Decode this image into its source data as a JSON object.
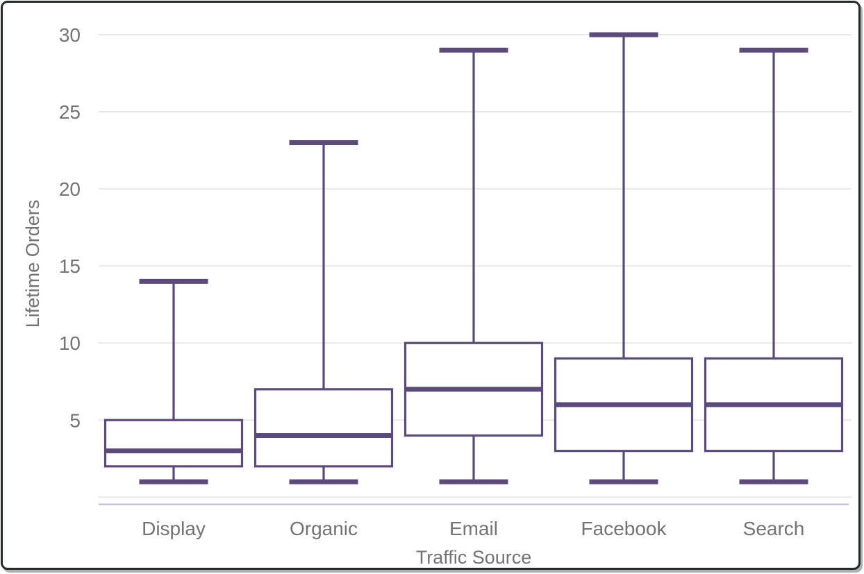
{
  "chart_data": {
    "type": "boxplot",
    "title": "",
    "xlabel": "Traffic Source",
    "ylabel": "Lifetime Orders",
    "categories": [
      "Display",
      "Organic",
      "Email",
      "Facebook",
      "Search"
    ],
    "series": [
      {
        "name": "Display",
        "min": 1,
        "q1": 2,
        "median": 3,
        "q3": 5,
        "max": 14
      },
      {
        "name": "Organic",
        "min": 1,
        "q1": 2,
        "median": 4,
        "q3": 7,
        "max": 23
      },
      {
        "name": "Email",
        "min": 1,
        "q1": 4,
        "median": 7,
        "q3": 10,
        "max": 29
      },
      {
        "name": "Facebook",
        "min": 1,
        "q1": 3,
        "median": 6,
        "q3": 9,
        "max": 30
      },
      {
        "name": "Search",
        "min": 1,
        "q1": 3,
        "median": 6,
        "q3": 9,
        "max": 29
      }
    ],
    "ylim": [
      0,
      30
    ],
    "yticks": [
      5,
      10,
      15,
      20,
      25,
      30
    ],
    "gridline_values": [
      0,
      5,
      10,
      15,
      20,
      25,
      30
    ],
    "grid": true,
    "legend": "none",
    "colors": {
      "box_stroke": "#5c4a7d",
      "box_fill": "#ffffff",
      "gridline": "#e7e7e7",
      "x_axis_line": "#b9c5e2",
      "axis_text": "#737373",
      "frame_border": "#24292a"
    }
  }
}
